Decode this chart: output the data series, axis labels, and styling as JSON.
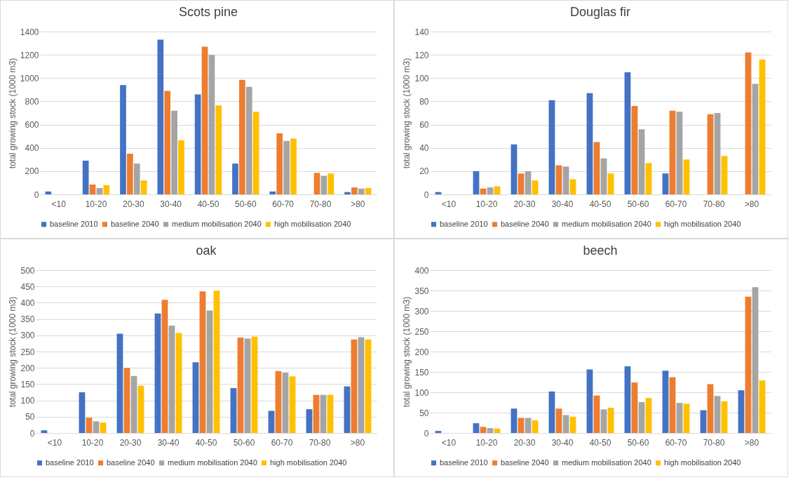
{
  "chart_data": [
    {
      "type": "bar",
      "title": "Scots pine",
      "ylabel": "total growing stock (1000 m3)",
      "categories": [
        "<10",
        "10-20",
        "20-30",
        "30-40",
        "40-50",
        "50-60",
        "60-70",
        "70-80",
        ">80"
      ],
      "ylim": [
        0,
        1400
      ],
      "yticks": [
        0,
        200,
        400,
        600,
        800,
        1000,
        1200,
        1400
      ],
      "grid": "y",
      "legend": "bottom",
      "series": [
        {
          "name": "baseline 2010",
          "color": "#4472c4",
          "values": [
            25,
            290,
            940,
            1330,
            860,
            265,
            25,
            null,
            20
          ]
        },
        {
          "name": "baseline 2040",
          "color": "#ed7d31",
          "values": [
            null,
            85,
            350,
            890,
            1270,
            985,
            525,
            185,
            60
          ]
        },
        {
          "name": "medium mobilisation 2040",
          "color": "#a5a5a5",
          "values": [
            null,
            55,
            265,
            720,
            1200,
            925,
            460,
            160,
            50
          ]
        },
        {
          "name": "high mobilisation 2040",
          "color": "#ffc000",
          "values": [
            null,
            80,
            120,
            465,
            765,
            710,
            480,
            180,
            55
          ]
        }
      ]
    },
    {
      "type": "bar",
      "title": "Douglas fir",
      "ylabel": "total growing stock (1000 m3)",
      "categories": [
        "<10",
        "10-20",
        "20-30",
        "30-40",
        "40-50",
        "50-60",
        "60-70",
        "70-80",
        ">80"
      ],
      "ylim": [
        0,
        140
      ],
      "yticks": [
        0,
        20,
        40,
        60,
        80,
        100,
        120,
        140
      ],
      "grid": "y",
      "legend": "bottom",
      "series": [
        {
          "name": "baseline 2010",
          "color": "#4472c4",
          "values": [
            2,
            20,
            43,
            81,
            87,
            105,
            18,
            null,
            null
          ]
        },
        {
          "name": "baseline 2040",
          "color": "#ed7d31",
          "values": [
            null,
            5,
            18,
            25,
            45,
            76,
            72,
            69,
            122
          ]
        },
        {
          "name": "medium mobilisation 2040",
          "color": "#a5a5a5",
          "values": [
            null,
            6,
            20,
            24,
            31,
            56,
            71,
            70,
            95
          ]
        },
        {
          "name": "high mobilisation 2040",
          "color": "#ffc000",
          "values": [
            null,
            7,
            12,
            13,
            18,
            27,
            30,
            33,
            116
          ]
        }
      ]
    },
    {
      "type": "bar",
      "title": "oak",
      "ylabel": "total growing stock (1000 m3)",
      "categories": [
        "<10",
        "10-20",
        "20-30",
        "30-40",
        "40-50",
        "50-60",
        "60-70",
        "70-80",
        ">80"
      ],
      "ylim": [
        0,
        500
      ],
      "yticks": [
        0,
        50,
        100,
        150,
        200,
        250,
        300,
        350,
        400,
        450,
        500
      ],
      "grid": "y",
      "legend": "bottom",
      "series": [
        {
          "name": "baseline 2010",
          "color": "#4472c4",
          "values": [
            8,
            125,
            305,
            367,
            217,
            138,
            68,
            73,
            143
          ]
        },
        {
          "name": "baseline 2040",
          "color": "#ed7d31",
          "values": [
            null,
            47,
            200,
            409,
            435,
            293,
            190,
            117,
            287
          ]
        },
        {
          "name": "medium mobilisation 2040",
          "color": "#a5a5a5",
          "values": [
            null,
            36,
            175,
            330,
            376,
            290,
            186,
            117,
            294
          ]
        },
        {
          "name": "high mobilisation 2040",
          "color": "#ffc000",
          "values": [
            null,
            32,
            145,
            307,
            437,
            296,
            174,
            117,
            287
          ]
        }
      ]
    },
    {
      "type": "bar",
      "title": "beech",
      "ylabel": "total growing stock (1000 m3)",
      "categories": [
        "<10",
        "10-20",
        "20-30",
        "30-40",
        "40-50",
        "50-60",
        "60-70",
        "70-80",
        ">80"
      ],
      "ylim": [
        0,
        400
      ],
      "yticks": [
        0,
        50,
        100,
        150,
        200,
        250,
        300,
        350,
        400
      ],
      "grid": "y",
      "legend": "bottom",
      "series": [
        {
          "name": "baseline 2010",
          "color": "#4472c4",
          "values": [
            5,
            24,
            60,
            102,
            156,
            164,
            153,
            56,
            105
          ]
        },
        {
          "name": "baseline 2040",
          "color": "#ed7d31",
          "values": [
            null,
            15,
            37,
            60,
            92,
            124,
            137,
            120,
            335
          ]
        },
        {
          "name": "medium mobilisation 2040",
          "color": "#a5a5a5",
          "values": [
            null,
            12,
            37,
            44,
            58,
            76,
            74,
            91,
            358
          ]
        },
        {
          "name": "high mobilisation 2040",
          "color": "#ffc000",
          "values": [
            null,
            11,
            31,
            40,
            62,
            86,
            72,
            78,
            129
          ]
        }
      ]
    }
  ]
}
